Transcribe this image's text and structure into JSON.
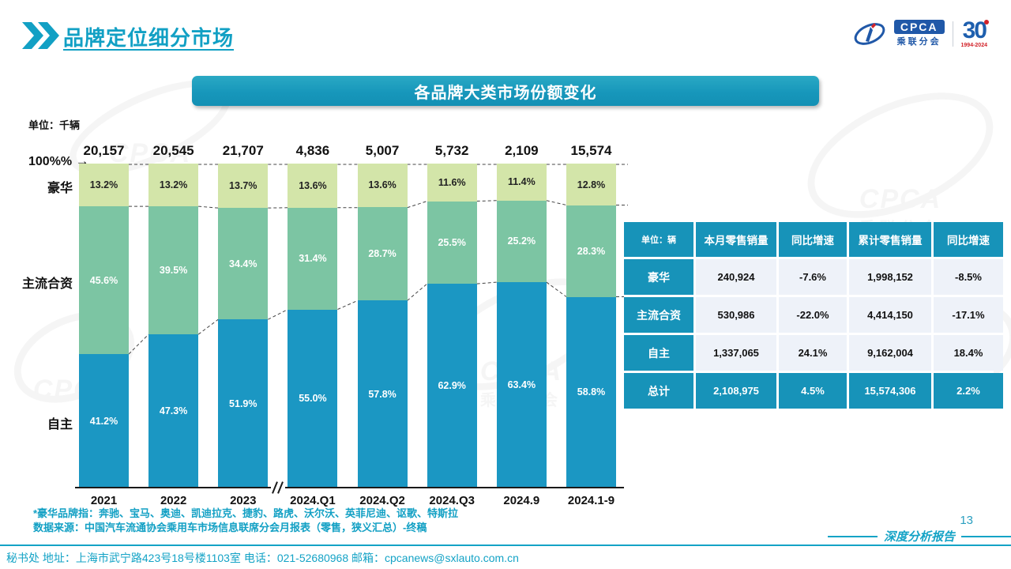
{
  "page": {
    "title": "品牌定位细分市场",
    "page_number": "13",
    "report_type": "深度分析报告"
  },
  "logo": {
    "cpca": "CPCA",
    "sub": "乘联分会",
    "anniversary": "30",
    "years": "1994-2024",
    "brand_blue": "#2058a8",
    "brand_red": "#d2232a"
  },
  "banner": {
    "title": "各品牌大类市场份额变化"
  },
  "chart_data": {
    "type": "bar",
    "subtype": "stacked-100-percent",
    "unit_label": "单位：千辆",
    "left_axis_label": "100%",
    "categories": [
      "2021",
      "2022",
      "2023",
      "2024.Q1",
      "2024.Q2",
      "2024.Q3",
      "2024.9",
      "2024.1-9"
    ],
    "totals": [
      "20,157",
      "20,545",
      "21,707",
      "4,836",
      "5,007",
      "5,732",
      "2,109",
      "15,574"
    ],
    "axis_break_after_index": 2,
    "series": [
      {
        "name": "自主",
        "color": "#1b97c3",
        "text_color": "#ffffff",
        "values": [
          41.2,
          47.3,
          51.9,
          55.0,
          57.8,
          62.9,
          63.4,
          58.8
        ]
      },
      {
        "name": "主流合资",
        "color": "#7cc5a3",
        "text_color": "#ffffff",
        "values": [
          45.6,
          39.5,
          34.4,
          31.4,
          28.7,
          25.5,
          25.2,
          28.3
        ]
      },
      {
        "name": "豪华",
        "color": "#d3e5a9",
        "text_color": "#222222",
        "values": [
          13.2,
          13.2,
          13.7,
          13.6,
          13.6,
          11.6,
          11.4,
          12.8
        ]
      }
    ],
    "ylim": [
      0,
      100
    ],
    "grid": false,
    "legend_position": "left-inline"
  },
  "table": {
    "unit_header": "单位：辆",
    "columns": [
      "本月零售销量",
      "同比增速",
      "累计零售销量",
      "同比增速"
    ],
    "rows": [
      {
        "label": "豪华",
        "values": [
          "240,924",
          "-7.6%",
          "1,998,152",
          "-8.5%"
        ],
        "highlight": false
      },
      {
        "label": "主流合资",
        "values": [
          "530,986",
          "-22.0%",
          "4,414,150",
          "-17.1%"
        ],
        "highlight": false
      },
      {
        "label": "自主",
        "values": [
          "1,337,065",
          "24.1%",
          "9,162,004",
          "18.4%"
        ],
        "highlight": false
      },
      {
        "label": "总计",
        "values": [
          "2,108,975",
          "4.5%",
          "15,574,306",
          "2.2%"
        ],
        "highlight": true
      }
    ]
  },
  "notes": {
    "line1": "*豪华品牌指：奔驰、宝马、奥迪、凯迪拉克、捷豹、路虎、沃尔沃、英菲尼迪、讴歌、特斯拉",
    "line2": "数据来源：中国汽车流通协会乘用车市场信息联席分会月报表（零售，狭义汇总）-终稿"
  },
  "footer": {
    "contact": "秘书处  地址：上海市武宁路423号18号楼1103室 电话：021-52680968  邮箱：cpcanews@sxlauto.com.cn"
  },
  "decor": {
    "watermark_main": "CPCA",
    "watermark_sub": "乘联分会"
  },
  "colors": {
    "accent_teal": "#14a3c6",
    "table_teal": "#1793b9",
    "bar_blue": "#1b97c3",
    "bar_seagreen": "#7cc5a3",
    "bar_lightgreen": "#d3e5a9"
  }
}
